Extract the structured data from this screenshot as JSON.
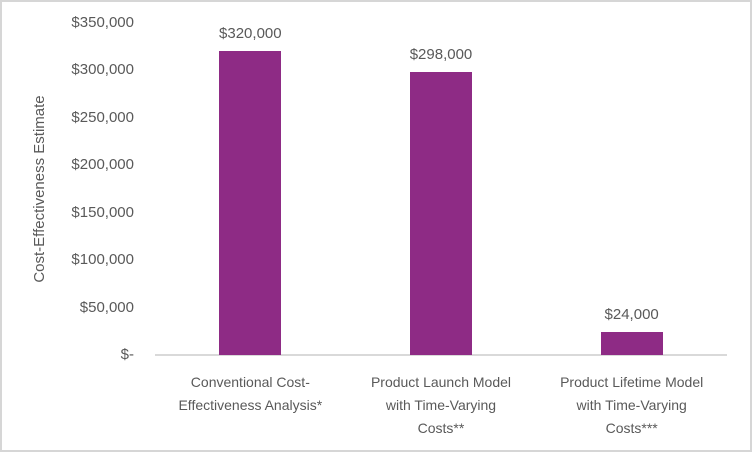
{
  "chart_data": {
    "type": "bar",
    "title": "",
    "xlabel": "",
    "ylabel": "Cost-Effectiveness Estimate",
    "ylim": [
      0,
      350000
    ],
    "grid": "off",
    "legend": "none",
    "categories": [
      "Conventional Cost-Effectiveness Analysis*",
      "Product Launch Model with Time-Varying Costs**",
      "Product Lifetime Model with Time-Varying Costs***"
    ],
    "category_lines": [
      [
        "Conventional Cost-",
        "Effectiveness Analysis*"
      ],
      [
        "Product Launch Model",
        "with Time-Varying",
        "Costs**"
      ],
      [
        "Product Lifetime Model",
        "with Time-Varying",
        "Costs***"
      ]
    ],
    "values": [
      320000,
      298000,
      24000
    ],
    "data_labels": [
      "$320,000",
      "$298,000",
      "$24,000"
    ],
    "y_ticks": [
      {
        "value": 0,
        "label": "$-"
      },
      {
        "value": 50000,
        "label": "$50,000"
      },
      {
        "value": 100000,
        "label": "$100,000"
      },
      {
        "value": 150000,
        "label": "$150,000"
      },
      {
        "value": 200000,
        "label": "$200,000"
      },
      {
        "value": 250000,
        "label": "$250,000"
      },
      {
        "value": 300000,
        "label": "$300,000"
      },
      {
        "value": 350000,
        "label": "$350,000"
      }
    ],
    "colors": {
      "bar": "#8E2B85",
      "text": "#595959",
      "axis_line": "#D9D9D9",
      "frame_border": "#D6D6D6",
      "background": "#FFFFFF"
    }
  }
}
